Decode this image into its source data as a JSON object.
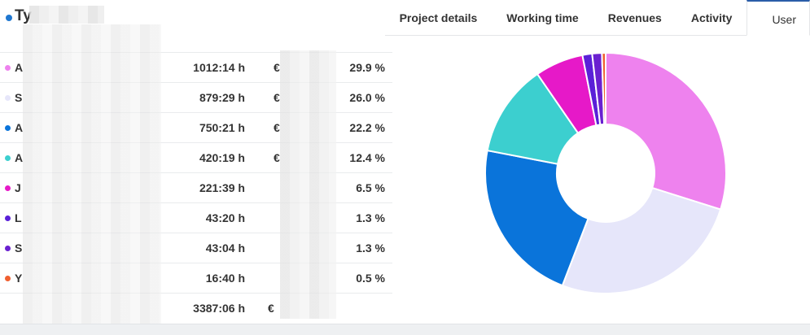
{
  "header": {
    "title_initial": "Ty",
    "title_dot_color": "#1f77d0"
  },
  "tabs": [
    {
      "label": "Project details",
      "active": false
    },
    {
      "label": "Working time",
      "active": false
    },
    {
      "label": "Revenues",
      "active": false
    },
    {
      "label": "Activity",
      "active": false
    },
    {
      "label": "User",
      "active": true
    }
  ],
  "table": {
    "rows": [
      {
        "initial": "A",
        "time": "1012:14 h",
        "euro": "€",
        "percent": "29.9 %",
        "color": "#ee82ee"
      },
      {
        "initial": "S",
        "time": "879:29 h",
        "euro": "€",
        "percent": "26.0 %",
        "color": "#e6e6fa"
      },
      {
        "initial": "A",
        "time": "750:21 h",
        "euro": "€",
        "percent": "22.2 %",
        "color": "#0a74da"
      },
      {
        "initial": "A",
        "time": "420:19 h",
        "euro": "€",
        "percent": "12.4 %",
        "color": "#3ccfcf"
      },
      {
        "initial": "J",
        "time": "221:39 h",
        "euro": "",
        "percent": "6.5 %",
        "color": "#e619c8"
      },
      {
        "initial": "L",
        "time": "43:20 h",
        "euro": "",
        "percent": "1.3 %",
        "color": "#5a20d8"
      },
      {
        "initial": "S",
        "time": "43:04 h",
        "euro": "",
        "percent": "1.3 %",
        "color": "#6a20d0"
      },
      {
        "initial": "Y",
        "time": "16:40 h",
        "euro": "",
        "percent": "0.5 %",
        "color": "#f06030"
      }
    ],
    "total": {
      "time": "3387:06 h",
      "euro": "€"
    }
  },
  "chart_data": {
    "type": "pie",
    "donut": true,
    "values": [
      29.9,
      26.0,
      22.2,
      12.4,
      6.5,
      1.3,
      1.3,
      0.5
    ],
    "colors": [
      "#ee82ee",
      "#e6e6fa",
      "#0a74da",
      "#3ccfcf",
      "#e619c8",
      "#5a20d8",
      "#6a20d0",
      "#f06030"
    ]
  }
}
